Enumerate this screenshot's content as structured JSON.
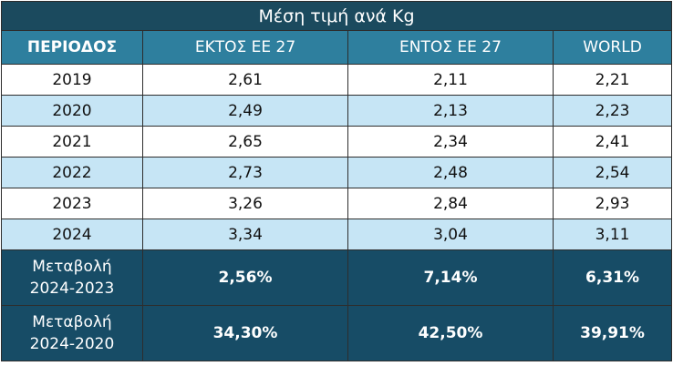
{
  "chart_data": {
    "type": "table",
    "title": "Μέση τιμή ανά Kg",
    "columns": [
      "ΠΕΡΙΟΔΟΣ",
      "ΕΚΤΟΣ ΕΕ 27",
      "ΕΝΤΟΣ ΕΕ 27",
      "WORLD"
    ],
    "rows": [
      {
        "period": "2019",
        "values": [
          "2,61",
          "2,11",
          "2,21"
        ]
      },
      {
        "period": "2020",
        "values": [
          "2,49",
          "2,13",
          "2,23"
        ]
      },
      {
        "period": "2021",
        "values": [
          "2,65",
          "2,34",
          "2,41"
        ]
      },
      {
        "period": "2022",
        "values": [
          "2,73",
          "2,48",
          "2,54"
        ]
      },
      {
        "period": "2023",
        "values": [
          "3,26",
          "2,84",
          "2,93"
        ]
      },
      {
        "period": "2024",
        "values": [
          "3,34",
          "3,04",
          "3,11"
        ]
      }
    ],
    "changes": [
      {
        "label_line1": "Μεταβολή",
        "label_line2": "2024-2023",
        "values": [
          "2,56%",
          "7,14%",
          "6,31%"
        ]
      },
      {
        "label_line1": "Μεταβολή",
        "label_line2": "2024-2020",
        "values": [
          "34,30%",
          "42,50%",
          "39,91%"
        ]
      }
    ],
    "colors": {
      "title_bg": "#1b4a5e",
      "header_bg": "#2e7f9e",
      "row_alt_bg": "#c6e5f5",
      "change_bg": "#174c66"
    }
  }
}
